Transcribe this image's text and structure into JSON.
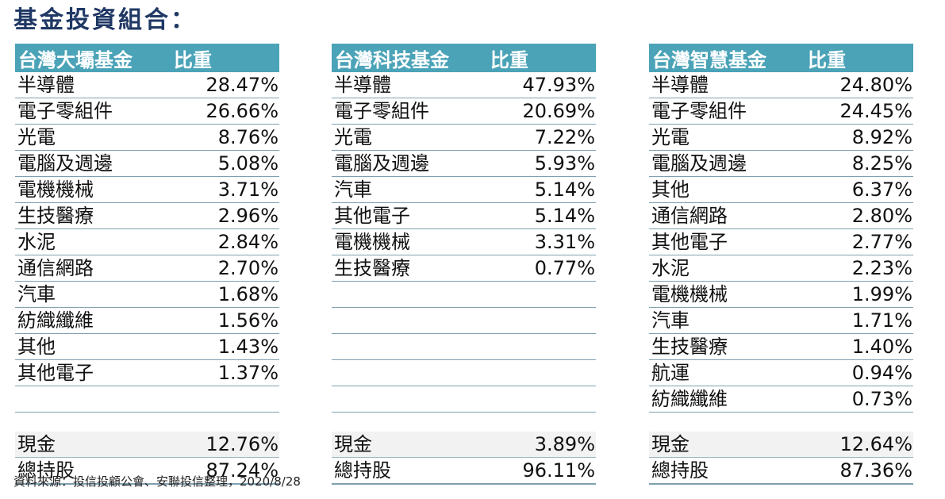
{
  "title": "基金投資組合：",
  "source": "資料來源：投信投顧公會、安聯投信整理，2020/8/28",
  "colors": {
    "header_bg": "#4ba3b8",
    "title": "#1f3864",
    "cash_row_bg": "#f2f2f2"
  },
  "funds": [
    {
      "name": "台灣大壩基金",
      "weight_label": "比重",
      "rows": [
        {
          "sector": "半導體",
          "weight": "28.47%"
        },
        {
          "sector": "電子零組件",
          "weight": "26.66%"
        },
        {
          "sector": "光電",
          "weight": "8.76%"
        },
        {
          "sector": "電腦及週邊",
          "weight": "5.08%"
        },
        {
          "sector": "電機機械",
          "weight": "3.71%"
        },
        {
          "sector": "生技醫療",
          "weight": "2.96%"
        },
        {
          "sector": "水泥",
          "weight": "2.84%"
        },
        {
          "sector": "通信網路",
          "weight": "2.70%"
        },
        {
          "sector": "汽車",
          "weight": "1.68%"
        },
        {
          "sector": "紡織纖維",
          "weight": "1.56%"
        },
        {
          "sector": "其他",
          "weight": "1.43%"
        },
        {
          "sector": "其他電子",
          "weight": "1.37%"
        },
        {
          "sector": "",
          "weight": ""
        }
      ],
      "cash": {
        "label": "現金",
        "weight": "12.76%"
      },
      "total": {
        "label": "總持股",
        "weight": "87.24%"
      }
    },
    {
      "name": "台灣科技基金",
      "weight_label": "比重",
      "rows": [
        {
          "sector": "半導體",
          "weight": "47.93%"
        },
        {
          "sector": "電子零組件",
          "weight": "20.69%"
        },
        {
          "sector": "光電",
          "weight": "7.22%"
        },
        {
          "sector": "電腦及週邊",
          "weight": "5.93%"
        },
        {
          "sector": "汽車",
          "weight": "5.14%"
        },
        {
          "sector": "其他電子",
          "weight": "5.14%"
        },
        {
          "sector": "電機機械",
          "weight": "3.31%"
        },
        {
          "sector": "生技醫療",
          "weight": "0.77%"
        },
        {
          "sector": "",
          "weight": ""
        },
        {
          "sector": "",
          "weight": ""
        },
        {
          "sector": "",
          "weight": ""
        },
        {
          "sector": "",
          "weight": ""
        },
        {
          "sector": "",
          "weight": ""
        }
      ],
      "cash": {
        "label": "現金",
        "weight": "3.89%"
      },
      "total": {
        "label": "總持股",
        "weight": "96.11%"
      }
    },
    {
      "name": "台灣智慧基金",
      "weight_label": "比重",
      "rows": [
        {
          "sector": "半導體",
          "weight": "24.80%"
        },
        {
          "sector": "電子零組件",
          "weight": "24.45%"
        },
        {
          "sector": "光電",
          "weight": "8.92%"
        },
        {
          "sector": "電腦及週邊",
          "weight": "8.25%"
        },
        {
          "sector": "其他",
          "weight": "6.37%"
        },
        {
          "sector": "通信網路",
          "weight": "2.80%"
        },
        {
          "sector": "其他電子",
          "weight": "2.77%"
        },
        {
          "sector": "水泥",
          "weight": "2.23%"
        },
        {
          "sector": "電機機械",
          "weight": "1.99%"
        },
        {
          "sector": "汽車",
          "weight": "1.71%"
        },
        {
          "sector": "生技醫療",
          "weight": "1.40%"
        },
        {
          "sector": "航運",
          "weight": "0.94%"
        },
        {
          "sector": "紡織纖維",
          "weight": "0.73%"
        }
      ],
      "cash": {
        "label": "現金",
        "weight": "12.64%"
      },
      "total": {
        "label": "總持股",
        "weight": "87.36%"
      }
    }
  ]
}
